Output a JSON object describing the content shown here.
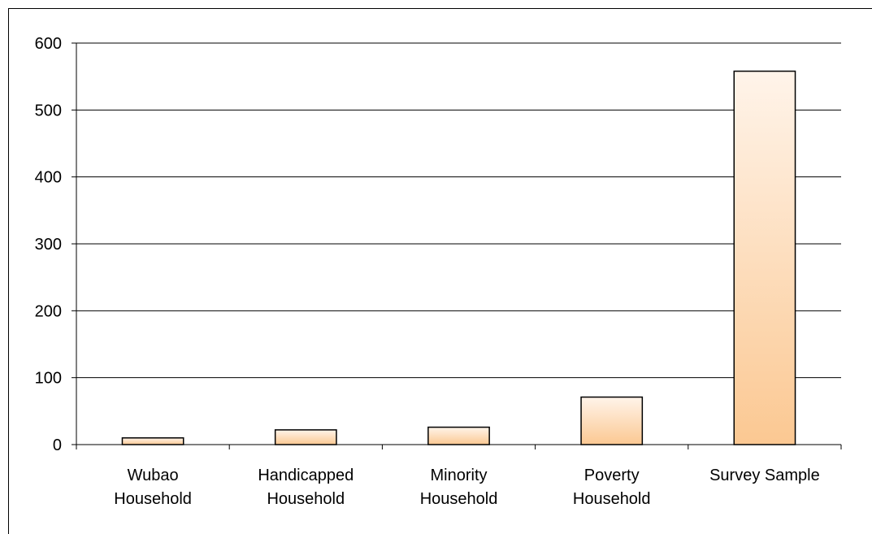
{
  "chart_data": {
    "type": "bar",
    "categories": [
      [
        "Wubao",
        "Household"
      ],
      [
        "Handicapped",
        "Household"
      ],
      [
        "Minority",
        "Household"
      ],
      [
        "Poverty",
        "Household"
      ],
      [
        "Survey Sample"
      ]
    ],
    "values": [
      10,
      22,
      26,
      71,
      558
    ],
    "ylim": [
      0,
      600
    ],
    "yticks": [
      0,
      100,
      200,
      300,
      400,
      500,
      600
    ],
    "grid": true,
    "legend": "none",
    "colors": {
      "bar_top": "#fff4ea",
      "bar_bottom": "#fbc892",
      "bar_stroke": "#000000",
      "grid": "#000000"
    }
  }
}
